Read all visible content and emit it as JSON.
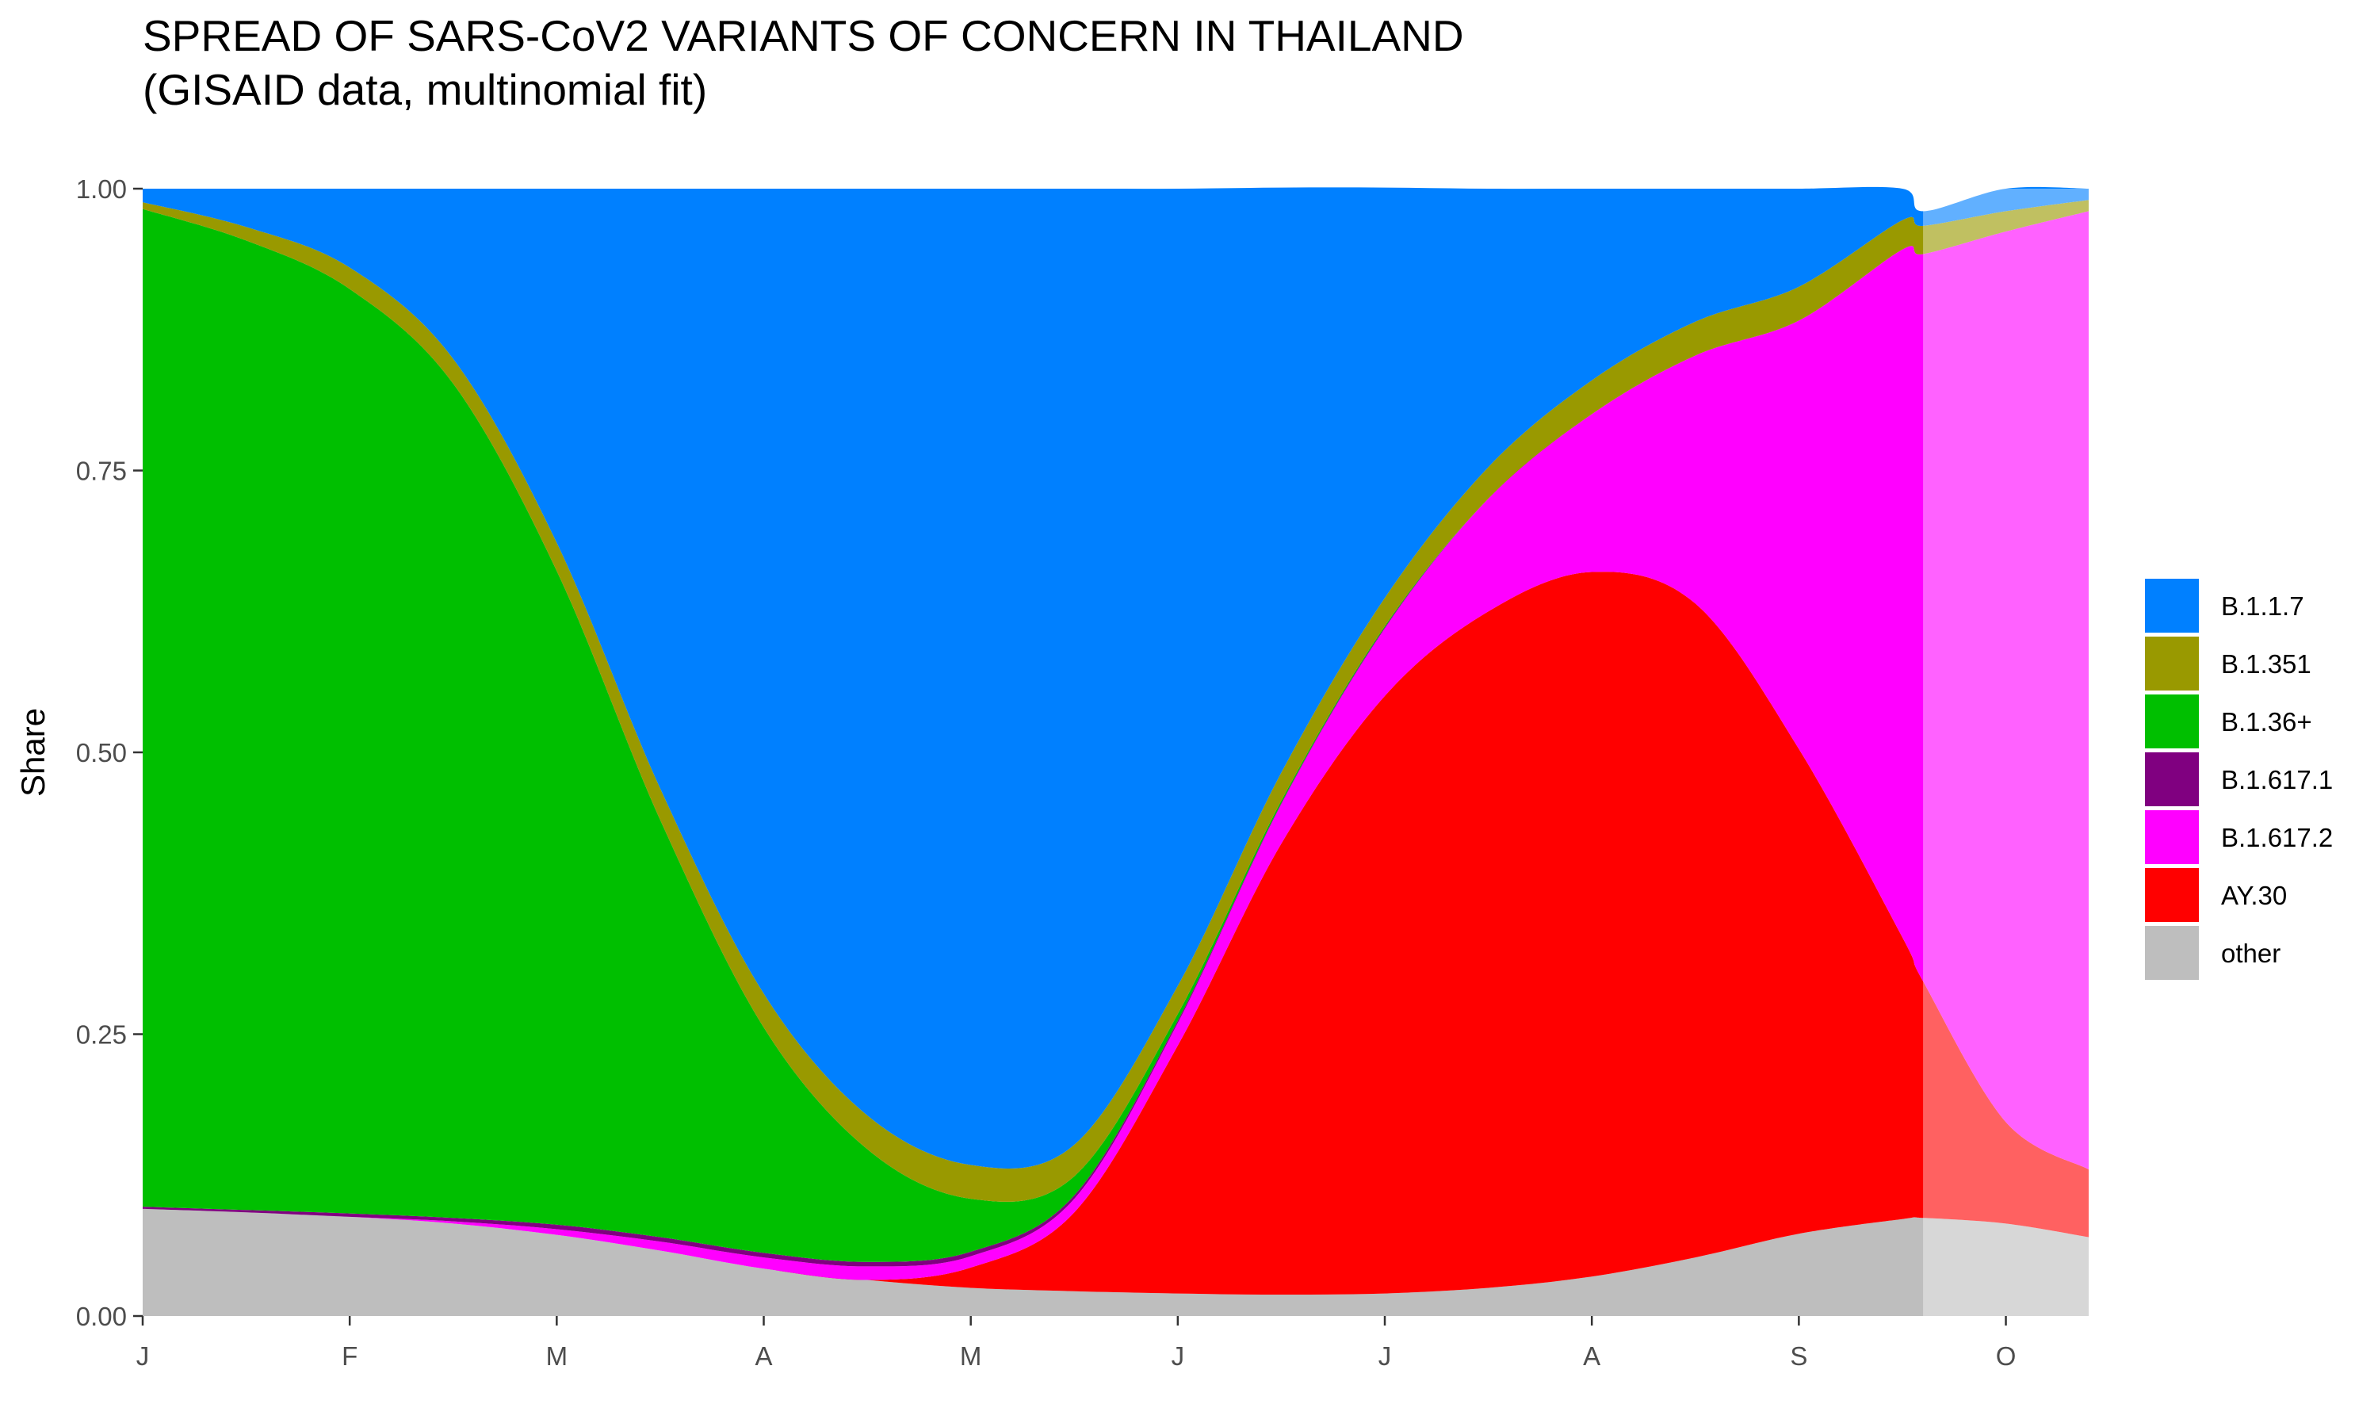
{
  "chart_data": {
    "type": "area",
    "stacked": true,
    "title": "SPREAD OF SARS-CoV2 VARIANTS OF CONCERN IN THAILAND",
    "subtitle": "(GISAID data, multinomial fit)",
    "xlabel": "",
    "ylabel": "Share",
    "x_ticks": [
      "J",
      "F",
      "M",
      "A",
      "M",
      "J",
      "J",
      "A",
      "S",
      "O"
    ],
    "y_ticks": [
      "0.00",
      "0.25",
      "0.50",
      "0.75",
      "1.00"
    ],
    "ylim": [
      0,
      1
    ],
    "xlim": [
      0,
      9.4
    ],
    "legend_position": "right",
    "projection_shading": {
      "from_x": 8.6,
      "to_x": 9.4,
      "style": "lighter"
    },
    "x": [
      0,
      0.5,
      1,
      1.5,
      2,
      2.5,
      3,
      3.5,
      4,
      4.5,
      5,
      5.5,
      6,
      6.5,
      7,
      7.5,
      8,
      8.5,
      8.6,
      9,
      9.4
    ],
    "series": [
      {
        "name": "other",
        "color": "#BEBEBE",
        "values": [
          0.095,
          0.092,
          0.088,
          0.082,
          0.072,
          0.058,
          0.042,
          0.032,
          0.025,
          0.022,
          0.02,
          0.019,
          0.02,
          0.025,
          0.035,
          0.052,
          0.073,
          0.086,
          0.087,
          0.082,
          0.07
        ]
      },
      {
        "name": "AY.30",
        "color": "#FF0000",
        "values": [
          0,
          0,
          0,
          0,
          0,
          0,
          0,
          0,
          0.018,
          0.07,
          0.22,
          0.4,
          0.53,
          0.6,
          0.625,
          0.58,
          0.43,
          0.25,
          0.21,
          0.09,
          0.06
        ]
      },
      {
        "name": "B.1.617.2",
        "color": "#FF00FF",
        "values": [
          0,
          0,
          0,
          0.002,
          0.005,
          0.008,
          0.01,
          0.012,
          0.01,
          0.012,
          0.02,
          0.035,
          0.06,
          0.1,
          0.14,
          0.22,
          0.38,
          0.61,
          0.645,
          0.79,
          0.85
        ]
      },
      {
        "name": "B.1.617.1",
        "color": "#800080",
        "values": [
          0.002,
          0.002,
          0.003,
          0.003,
          0.004,
          0.004,
          0.004,
          0.004,
          0.004,
          0.003,
          0.002,
          0.001,
          0.001,
          0,
          0,
          0,
          0,
          0,
          0,
          0,
          0
        ]
      },
      {
        "name": "B.1.36+",
        "color": "#00BF00",
        "values": [
          0.885,
          0.86,
          0.82,
          0.74,
          0.58,
          0.37,
          0.2,
          0.1,
          0.047,
          0.017,
          0.006,
          0.002,
          0.001,
          0,
          0,
          0,
          0,
          0,
          0,
          0,
          0
        ]
      },
      {
        "name": "B.1.351",
        "color": "#999900",
        "values": [
          0.006,
          0.012,
          0.019,
          0.022,
          0.025,
          0.028,
          0.03,
          0.03,
          0.03,
          0.028,
          0.025,
          0.025,
          0.025,
          0.028,
          0.03,
          0.03,
          0.03,
          0.026,
          0.025,
          0.018,
          0.01
        ]
      },
      {
        "name": "B.1.1.7",
        "color": "#0080FF",
        "values": [
          0.012,
          0.034,
          0.07,
          0.151,
          0.314,
          0.532,
          0.714,
          0.822,
          0.866,
          0.848,
          0.707,
          0.519,
          0.364,
          0.247,
          0.17,
          0.118,
          0.087,
          0.028,
          0.013,
          0.02,
          0.01
        ]
      }
    ],
    "legend": [
      {
        "name": "B.1.1.7",
        "color": "#0080FF"
      },
      {
        "name": "B.1.351",
        "color": "#999900"
      },
      {
        "name": "B.1.36+",
        "color": "#00BF00"
      },
      {
        "name": "B.1.617.1",
        "color": "#800080"
      },
      {
        "name": "B.1.617.2",
        "color": "#FF00FF"
      },
      {
        "name": "AY.30",
        "color": "#FF0000"
      },
      {
        "name": "other",
        "color": "#BEBEBE"
      }
    ]
  }
}
